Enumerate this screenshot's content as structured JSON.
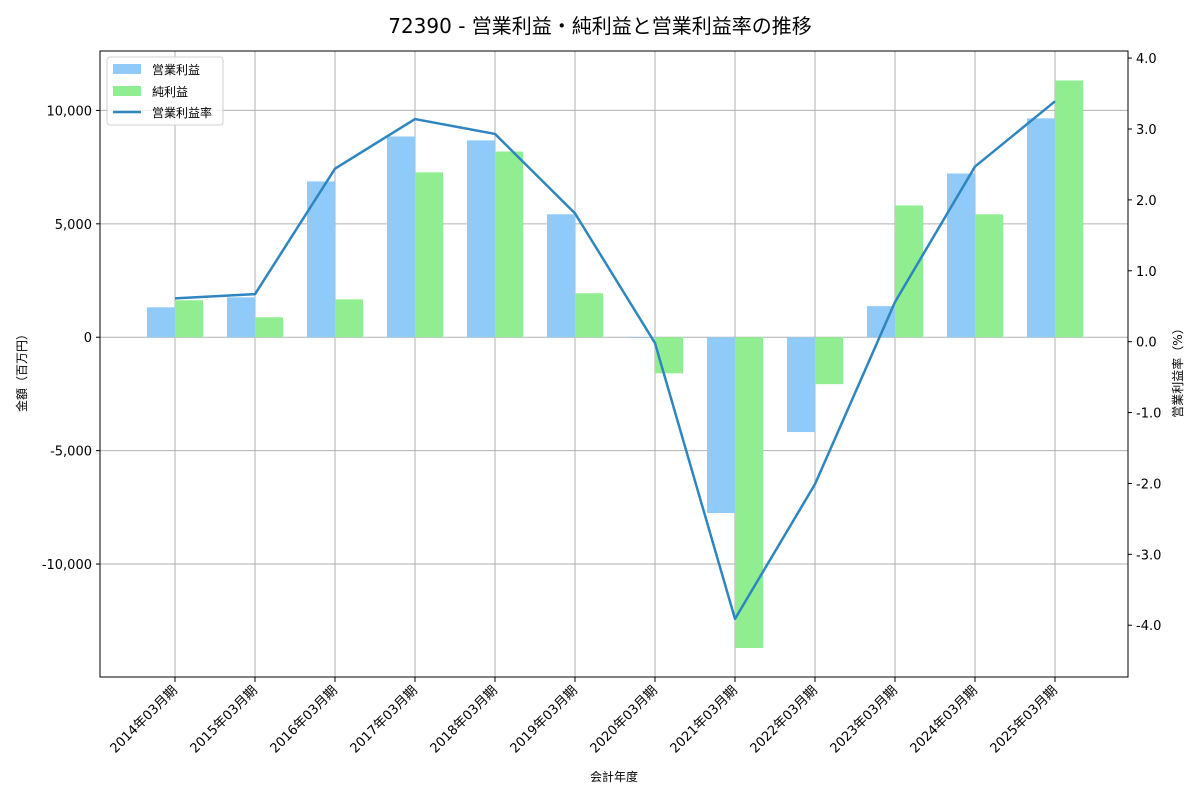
{
  "title": "72390 - 営業利益・純利益と営業利益率の推移",
  "colors": {
    "operating_profit": "#90CAF9",
    "net_profit": "#90EE90",
    "operating_margin": "#2E86C1",
    "grid": "#b0b0b0",
    "axis": "#000000"
  },
  "legend": {
    "items": [
      {
        "label": "営業利益",
        "type": "bar",
        "color": "#90CAF9"
      },
      {
        "label": "純利益",
        "type": "bar",
        "color": "#90EE90"
      },
      {
        "label": "営業利益率",
        "type": "line",
        "color": "#2E86C1"
      }
    ]
  },
  "axes": {
    "x_title": "会計年度",
    "y_left_title": "金額（百万円）",
    "y_right_title": "営業利益率（%）",
    "y_left_ticks": [
      {
        "value": 10000,
        "label": "10,000"
      },
      {
        "value": 5000,
        "label": "5,000"
      },
      {
        "value": 0,
        "label": "0"
      },
      {
        "value": -5000,
        "label": "-5,000"
      },
      {
        "value": -10000,
        "label": "-10,000"
      }
    ],
    "y_right_ticks": [
      {
        "value": 4.0,
        "label": "4.0"
      },
      {
        "value": 3.0,
        "label": "3.0"
      },
      {
        "value": 2.0,
        "label": "2.0"
      },
      {
        "value": 1.0,
        "label": "1.0"
      },
      {
        "value": 0.0,
        "label": "0.0"
      },
      {
        "value": -1.0,
        "label": "-1.0"
      },
      {
        "value": -2.0,
        "label": "-2.0"
      },
      {
        "value": -3.0,
        "label": "-3.0"
      },
      {
        "value": -4.0,
        "label": "-4.0"
      }
    ]
  },
  "chart_data": {
    "type": "bar",
    "title": "72390 - 営業利益・純利益と営業利益率の推移",
    "xlabel": "会計年度",
    "ylabel": "金額（百万円）",
    "y2label": "営業利益率（%）",
    "categories": [
      "2014年03月期",
      "2015年03月期",
      "2016年03月期",
      "2017年03月期",
      "2018年03月期",
      "2019年03月期",
      "2020年03月期",
      "2021年03月期",
      "2022年03月期",
      "2023年03月期",
      "2024年03月期",
      "2025年03月期"
    ],
    "series": [
      {
        "name": "営業利益",
        "type": "bar",
        "axis": "left",
        "color": "#90CAF9",
        "values": [
          1320,
          1760,
          6870,
          8850,
          8680,
          5420,
          -30,
          -7750,
          -4180,
          1370,
          7220,
          9650
        ]
      },
      {
        "name": "純利益",
        "type": "bar",
        "axis": "left",
        "color": "#90EE90",
        "values": [
          1630,
          880,
          1670,
          7270,
          8190,
          1940,
          -1590,
          -13700,
          -2070,
          5810,
          5420,
          11320
        ]
      },
      {
        "name": "営業利益率",
        "type": "line",
        "axis": "right",
        "color": "#2E86C1",
        "values": [
          0.61,
          0.67,
          2.44,
          3.14,
          2.93,
          1.81,
          -0.02,
          -3.91,
          -2.01,
          0.56,
          2.47,
          3.39
        ]
      }
    ],
    "ylim": [
      -14980,
      12620
    ],
    "y2lim": [
      -4.73,
      4.1
    ],
    "grid": true,
    "legend_position": "upper left"
  }
}
